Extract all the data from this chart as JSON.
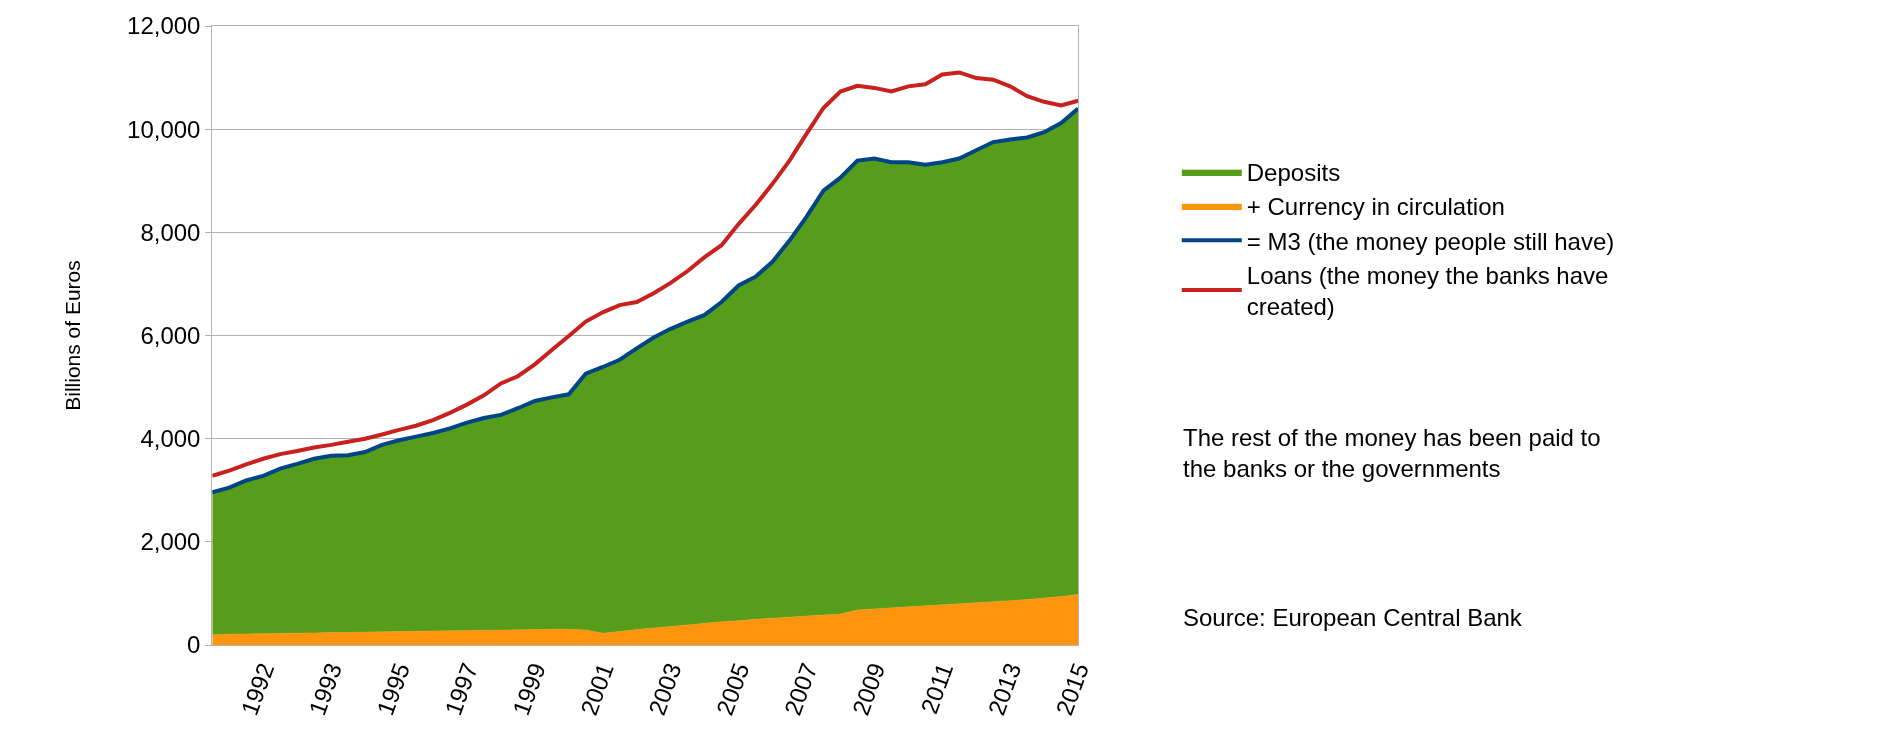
{
  "chart_data": {
    "type": "area",
    "stacked": true,
    "ylabel": "Billions of Euros",
    "categories": [
      null,
      null,
      null,
      "1992",
      null,
      null,
      null,
      "1993",
      null,
      null,
      null,
      "1995",
      null,
      null,
      null,
      "1997",
      null,
      null,
      null,
      "1999",
      null,
      null,
      null,
      "2001",
      null,
      null,
      null,
      "2003",
      null,
      null,
      null,
      "2005",
      null,
      null,
      null,
      "2007",
      null,
      null,
      null,
      "2009",
      null,
      null,
      null,
      "2011",
      null,
      null,
      null,
      "2013",
      null,
      null,
      null,
      "2015"
    ],
    "series": [
      {
        "name": "+ Currency in circulation",
        "color": "#ff950e",
        "values": [
          200,
          210,
          215,
          220,
          225,
          230,
          235,
          240,
          245,
          250,
          255,
          260,
          265,
          270,
          275,
          280,
          285,
          290,
          295,
          300,
          305,
          305,
          290,
          230,
          260,
          300,
          330,
          360,
          390,
          420,
          450,
          470,
          500,
          520,
          540,
          560,
          580,
          600,
          680,
          700,
          720,
          740,
          760,
          780,
          800,
          820,
          840,
          860,
          880,
          910,
          940,
          980
        ]
      },
      {
        "name": "Deposits",
        "color": "#579d1c",
        "values": [
          2760,
          2840,
          2975,
          3060,
          3195,
          3280,
          3375,
          3430,
          3435,
          3490,
          3625,
          3710,
          3775,
          3840,
          3925,
          4030,
          4115,
          4170,
          4295,
          4430,
          4495,
          4555,
          4970,
          5160,
          5270,
          5450,
          5630,
          5770,
          5880,
          5980,
          6200,
          6500,
          6640,
          6910,
          7300,
          7740,
          8230,
          8460,
          8710,
          8730,
          8640,
          8620,
          8550,
          8580,
          8630,
          8770,
          8910,
          8940,
          8960,
          9030,
          9180,
          9420
        ]
      },
      {
        "name": "= M3 (the money people still have)",
        "type": "line",
        "color": "#004586",
        "values": [
          2960,
          3050,
          3190,
          3280,
          3420,
          3510,
          3610,
          3670,
          3680,
          3740,
          3880,
          3970,
          4040,
          4110,
          4200,
          4310,
          4400,
          4460,
          4590,
          4730,
          4800,
          4860,
          5260,
          5390,
          5530,
          5750,
          5960,
          6130,
          6270,
          6400,
          6650,
          6970,
          7140,
          7430,
          7840,
          8300,
          8810,
          9060,
          9390,
          9430,
          9360,
          9360,
          9310,
          9360,
          9430,
          9590,
          9750,
          9800,
          9840,
          9940,
          10120,
          10400
        ]
      },
      {
        "name": "Loans (the money the banks have created)",
        "type": "line",
        "color": "#c9211e",
        "values": [
          3280,
          3380,
          3500,
          3610,
          3700,
          3760,
          3830,
          3880,
          3940,
          4000,
          4080,
          4170,
          4250,
          4360,
          4500,
          4660,
          4840,
          5070,
          5210,
          5440,
          5720,
          5990,
          6270,
          6450,
          6590,
          6650,
          6820,
          7020,
          7250,
          7520,
          7750,
          8160,
          8530,
          8940,
          9390,
          9910,
          10410,
          10730,
          10840,
          10800,
          10730,
          10830,
          10870,
          11060,
          11100,
          10990,
          10960,
          10830,
          10640,
          10530,
          10460,
          10550
        ]
      }
    ],
    "ylim": [
      0,
      12000
    ],
    "yticks": [
      0,
      {
        "value": 2000,
        "label": "2,000"
      },
      {
        "value": 4000,
        "label": "4,000"
      },
      {
        "value": 6000,
        "label": "6,000"
      },
      {
        "value": 8000,
        "label": "8,000"
      },
      {
        "value": 10000,
        "label": "10,000"
      },
      {
        "value": 12000,
        "label": "12,000"
      }
    ],
    "grid": "y",
    "legend": "right",
    "annotations": [
      "The rest of the money has been paid to the banks or the governments",
      "Source: European Central Bank"
    ]
  }
}
